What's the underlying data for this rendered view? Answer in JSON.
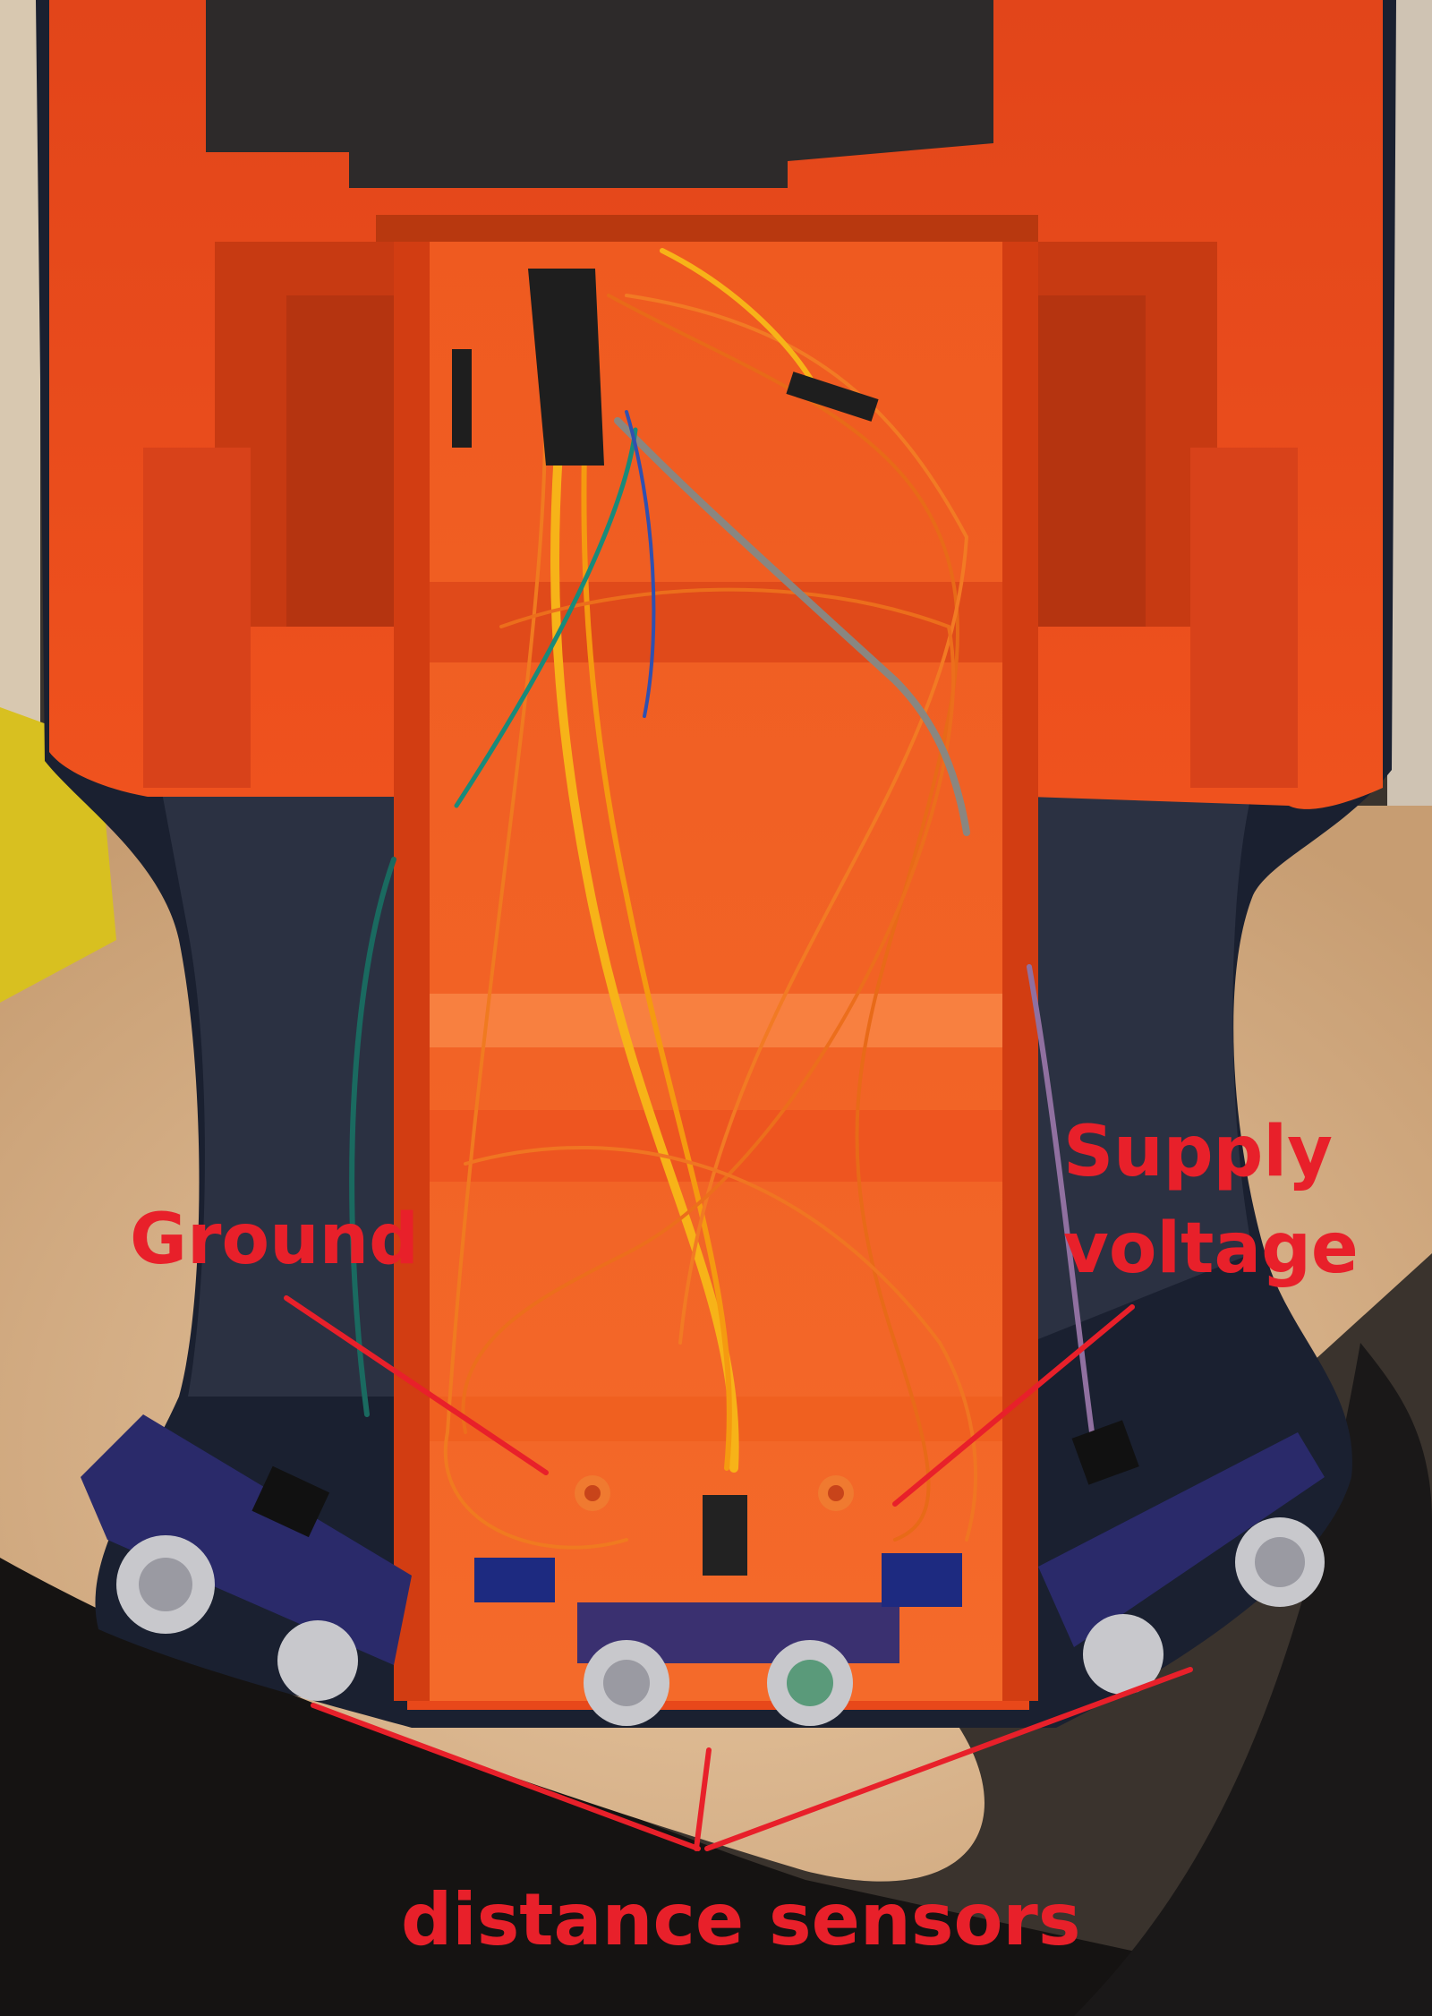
{
  "photo": {
    "subject": "opened orange robot housing with wiring and ultrasonic distance sensor boards",
    "annotation_color": "#e8202a",
    "housing_color": "#e8491c",
    "frame_color": "#1a2030"
  },
  "annotations": {
    "ground": "Ground",
    "supply_line1": "Supply",
    "supply_line2": "voltage",
    "sensors": "distance sensors"
  }
}
